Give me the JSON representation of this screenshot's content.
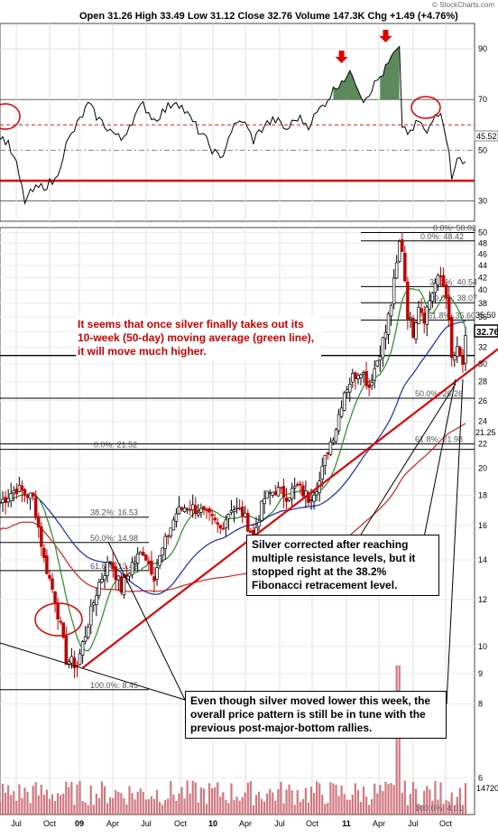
{
  "header": {
    "ohlc": "Open 31.26  High 33.49  Low 31.12  Close 32.76  Volume 147.3K  Chg +1.49 (+4.76%)",
    "watermark": "© StockCharts.com"
  },
  "chart_data": [
    {
      "type": "line",
      "name": "rsi-panel",
      "ylim": [
        22,
        100
      ],
      "y_ticks": [
        "30",
        "50",
        "70",
        "90"
      ],
      "last_value_label": "45.52",
      "reference_levels": {
        "overbought": 70,
        "midline": 50,
        "oversold": 30,
        "support": 38
      },
      "x_labels": [
        "Jul",
        "Oct",
        "09",
        "Apr",
        "Jul",
        "Oct",
        "10",
        "Apr",
        "Jul",
        "Oct",
        "11",
        "Apr",
        "Jul",
        "Oct"
      ]
    },
    {
      "type": "candlestick",
      "name": "price-panel",
      "log_scale": true,
      "ylim": [
        5.2,
        51
      ],
      "y_ticks": [
        "6",
        "8",
        "9",
        "10",
        "12",
        "14",
        "16",
        "18",
        "20",
        "22",
        "24",
        "26",
        "28",
        "30",
        "32",
        "34",
        "36",
        "38",
        "40",
        "42",
        "44",
        "46",
        "48",
        "50"
      ],
      "last_price_label": "32.76",
      "side_labels": [
        "35.50",
        "21.25"
      ],
      "fibonacci_1": {
        "levels": [
          {
            "label": "0.0%: 21.52",
            "value": 21.52
          },
          {
            "label": "38.2%: 16.53",
            "value": 16.53
          },
          {
            "label": "50.0%: 14.98",
            "value": 14.98
          },
          {
            "label": "61.8%: 13.43",
            "value": 13.43
          },
          {
            "label": "100.0%: 8.45",
            "value": 8.45
          }
        ]
      },
      "fibonacci_2": {
        "levels": [
          {
            "label": "0.0%: 50.02",
            "value": 50.02
          },
          {
            "label": "0.0%: 48.42",
            "value": 48.42
          },
          {
            "label": "38.2%: 40.54",
            "value": 40.54
          },
          {
            "label": "50.0%: 38.07",
            "value": 38.07
          },
          {
            "label": "61.8%: 35.60",
            "value": 35.6
          },
          {
            "label": "50.0%: 26.26",
            "value": 26.26
          },
          {
            "label": "61.8%: 21.98",
            "value": 21.98
          }
        ]
      },
      "volume_label": "14720",
      "volume_bottom_label": "100.0%: 4.01"
    }
  ],
  "annotations": {
    "red_note": "It seems that once silver finally takes out its 10-week (50-day) moving average (green line), it will move much higher.",
    "correction_note": "Silver corrected after reaching multiple resistance levels, but it stopped right at the 38.2% Fibonacci retracement level.",
    "pattern_note": "Even though silver moved lower this week, the overall price pattern is still be in tune with the previous post-major-bottom rallies."
  },
  "colors": {
    "accent_red": "#dd0000",
    "ma_green": "#2a8a2a",
    "ma_blue": "#1a2ab0",
    "ma_red": "#d02020",
    "rsi_fill": "#5c8a5c",
    "volume_bar": "#c8606a"
  }
}
